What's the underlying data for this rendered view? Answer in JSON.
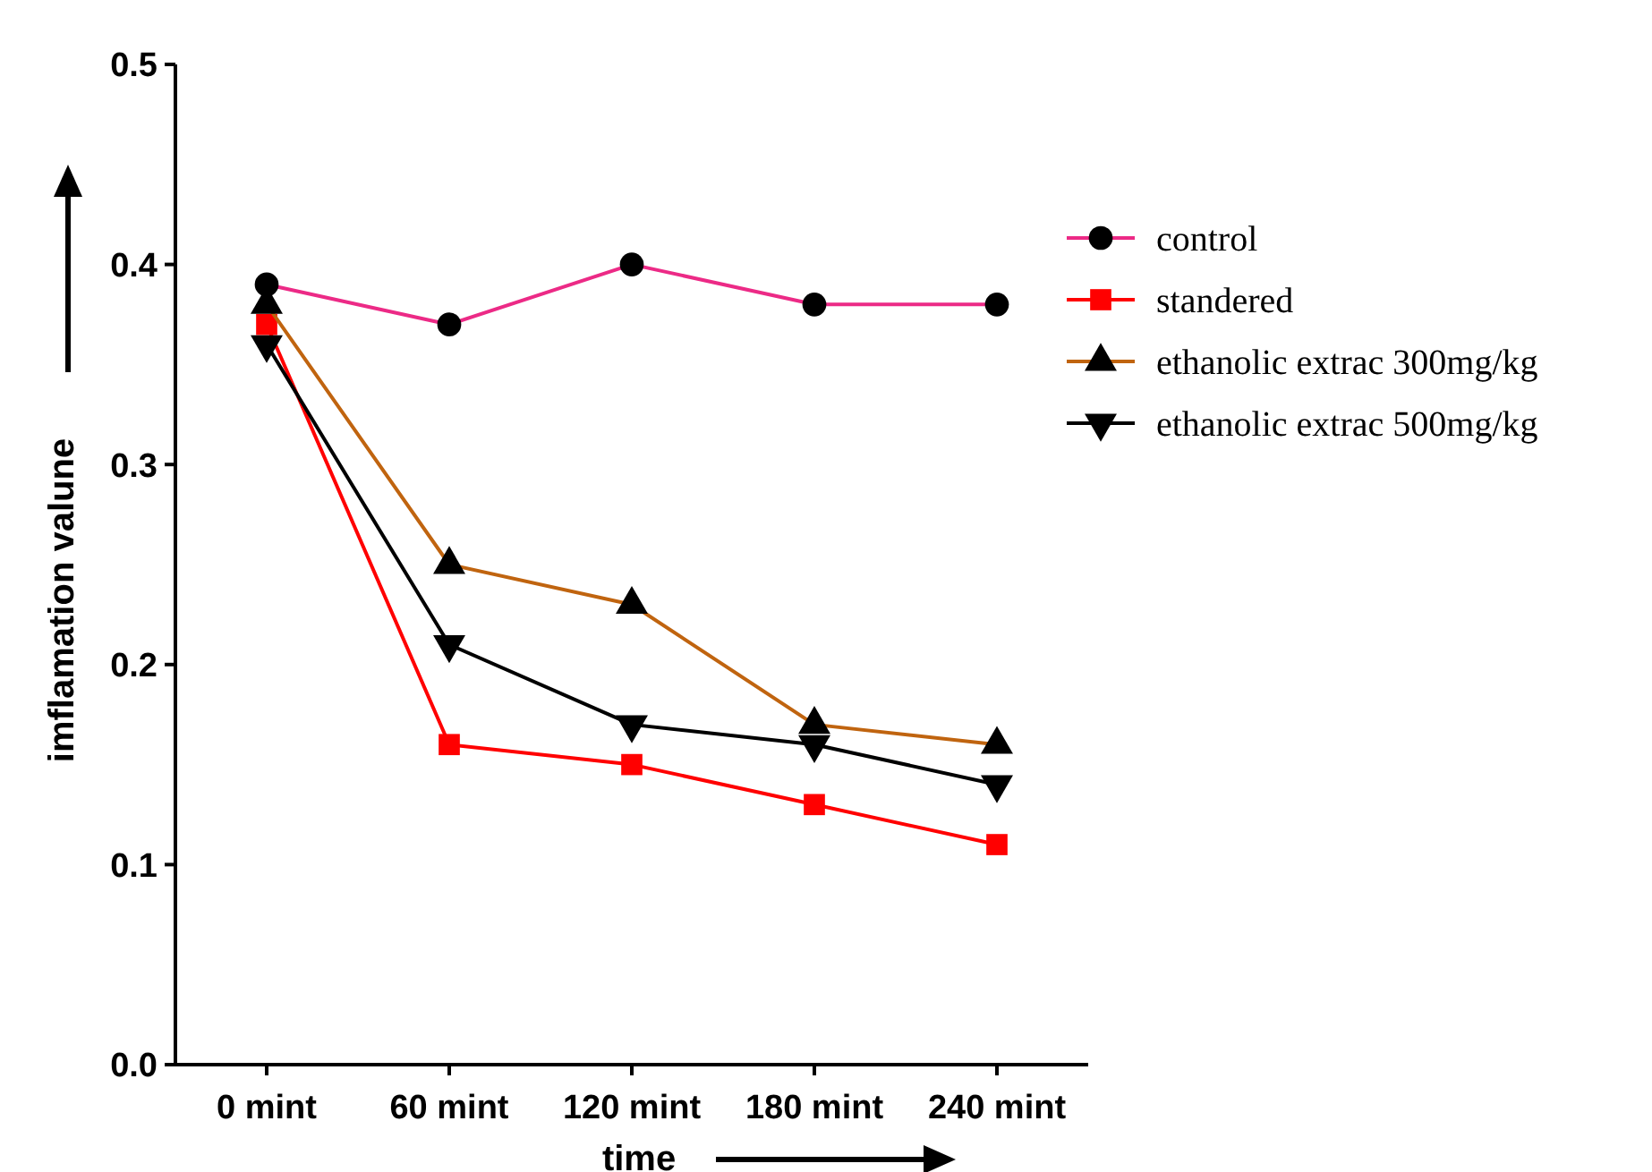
{
  "chart_data": {
    "type": "line",
    "xlabel": "time",
    "ylabel": "imflamation valune",
    "categories": [
      "0 mint",
      "60 mint",
      "120 mint",
      "180 mint",
      "240 mint"
    ],
    "series": [
      {
        "name": "control",
        "color": "#ec2a86",
        "colors": [
          "#000000",
          "#000000",
          "#000000",
          "#000000",
          "#000000"
        ],
        "marker": "circle",
        "values": [
          0.39,
          0.37,
          0.4,
          0.38,
          0.38
        ]
      },
      {
        "name": "standered",
        "color": "#ff0000",
        "marker": "square",
        "values": [
          0.37,
          0.16,
          0.15,
          0.13,
          0.11
        ]
      },
      {
        "name": "ethanolic extrac 300mg/kg",
        "color": "#c0640f",
        "colors": [
          "#000000",
          "#000000",
          "#000000",
          "#000000",
          "#000000"
        ],
        "marker": "triangle",
        "values": [
          0.38,
          0.25,
          0.23,
          0.17,
          0.16
        ]
      },
      {
        "name": "ethanolic extrac 500mg/kg",
        "color": "#000000",
        "marker": "triangle-down",
        "values": [
          0.36,
          0.21,
          0.17,
          0.16,
          0.14
        ]
      }
    ],
    "ylim": [
      0,
      0.5
    ],
    "yticks": [
      {
        "value": 0,
        "label": "0.0"
      },
      0.1,
      0.2,
      0.3,
      0.4,
      0.5
    ],
    "grid": false,
    "legend": "right",
    "line_style": "solid"
  }
}
